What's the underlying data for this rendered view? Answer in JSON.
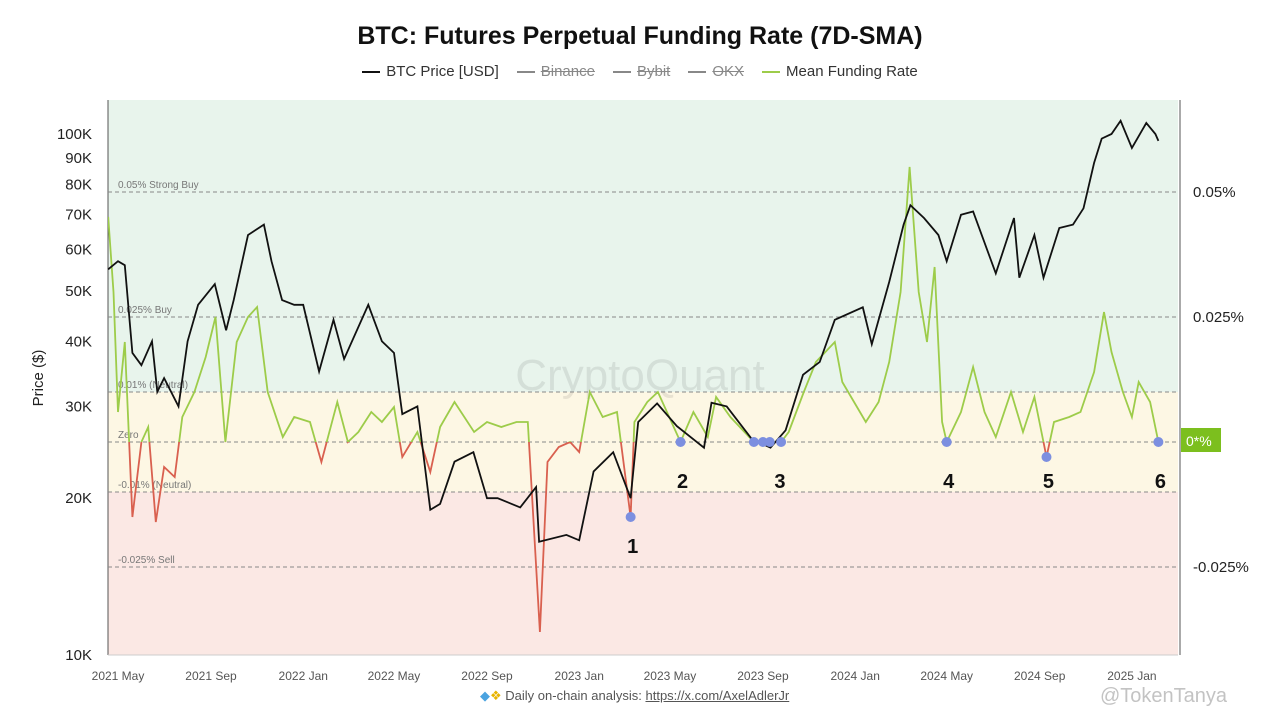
{
  "chart_data": {
    "type": "line",
    "title": "BTC: Futures Perpetual Funding Rate (7D-SMA)",
    "ylabel": "Price ($)",
    "legend": [
      {
        "name": "BTC Price [USD]",
        "color": "#111111",
        "hidden": false
      },
      {
        "name": "Binance",
        "color": "#888888",
        "hidden": true
      },
      {
        "name": "Bybit",
        "color": "#888888",
        "hidden": true
      },
      {
        "name": "OKX",
        "color": "#888888",
        "hidden": true
      },
      {
        "name": "Mean Funding Rate",
        "color": "#9dcc4a",
        "hidden": false
      }
    ],
    "legend_placement": "top-center",
    "x_ticks": [
      "2021 May",
      "2021 Sep",
      "2022 Jan",
      "2022 May",
      "2022 Sep",
      "2023 Jan",
      "2023 May",
      "2023 Sep",
      "2024 Jan",
      "2024 May",
      "2024 Sep",
      "2025 Jan"
    ],
    "y_left": {
      "scale": "log",
      "range": [
        10000,
        115000
      ],
      "ticks": [
        "10K",
        "20K",
        "30K",
        "40K",
        "50K",
        "60K",
        "70K",
        "80K",
        "90K",
        "100K"
      ],
      "tick_values": [
        10000,
        20000,
        30000,
        40000,
        50000,
        60000,
        70000,
        80000,
        90000,
        100000
      ]
    },
    "y_right": {
      "range_percent": [
        -0.045,
        0.068
      ],
      "ticks": [
        "0.05%",
        "0.025%",
        "-0.025%"
      ],
      "tick_values": [
        0.05,
        0.025,
        -0.025
      ],
      "current_label": "0*%"
    },
    "bands": [
      {
        "label": "0.05% Strong Buy",
        "value": 0.05
      },
      {
        "label": "0.025% Buy",
        "value": 0.025
      },
      {
        "label": "0.01% (Neutral)",
        "value": 0.01
      },
      {
        "label": "Zero",
        "value": 0
      },
      {
        "label": "-0.01% (Neutral)",
        "value": -0.01
      },
      {
        "label": "-0.025% Sell",
        "value": -0.025
      }
    ],
    "band_colors": {
      "buy": "#e8f4ec",
      "neutral": "#fdf7e4",
      "sell": "#fbe8e4"
    },
    "negative_color": "#d9604f",
    "marker_color": "#7c8fe0",
    "series": [
      {
        "name": "BTC Price [USD]",
        "points": [
          [
            "2021-04-18",
            55000
          ],
          [
            "2021-05-01",
            57000
          ],
          [
            "2021-05-10",
            56000
          ],
          [
            "2021-05-20",
            38000
          ],
          [
            "2021-06-01",
            36000
          ],
          [
            "2021-06-15",
            40000
          ],
          [
            "2021-06-22",
            32000
          ],
          [
            "2021-07-01",
            34000
          ],
          [
            "2021-07-20",
            30000
          ],
          [
            "2021-08-01",
            40000
          ],
          [
            "2021-08-15",
            47000
          ],
          [
            "2021-09-06",
            51500
          ],
          [
            "2021-09-21",
            42000
          ],
          [
            "2021-10-01",
            48000
          ],
          [
            "2021-10-20",
            64000
          ],
          [
            "2021-11-10",
            67000
          ],
          [
            "2021-11-20",
            57000
          ],
          [
            "2021-12-04",
            48000
          ],
          [
            "2021-12-20",
            47000
          ],
          [
            "2022-01-01",
            47000
          ],
          [
            "2022-01-22",
            35000
          ],
          [
            "2022-02-10",
            44000
          ],
          [
            "2022-02-24",
            37000
          ],
          [
            "2022-03-28",
            47000
          ],
          [
            "2022-04-15",
            40000
          ],
          [
            "2022-05-01",
            38000
          ],
          [
            "2022-05-12",
            29000
          ],
          [
            "2022-06-01",
            30000
          ],
          [
            "2022-06-18",
            19000
          ],
          [
            "2022-07-01",
            19500
          ],
          [
            "2022-07-20",
            23500
          ],
          [
            "2022-08-14",
            24500
          ],
          [
            "2022-09-01",
            20000
          ],
          [
            "2022-09-15",
            20000
          ],
          [
            "2022-10-15",
            19200
          ],
          [
            "2022-11-05",
            21000
          ],
          [
            "2022-11-09",
            16500
          ],
          [
            "2022-12-15",
            17000
          ],
          [
            "2023-01-01",
            16600
          ],
          [
            "2023-01-20",
            22500
          ],
          [
            "2023-02-15",
            24500
          ],
          [
            "2023-03-10",
            20000
          ],
          [
            "2023-03-20",
            28000
          ],
          [
            "2023-04-14",
            30400
          ],
          [
            "2023-05-10",
            27500
          ],
          [
            "2023-06-15",
            25000
          ],
          [
            "2023-06-25",
            30500
          ],
          [
            "2023-07-15",
            30000
          ],
          [
            "2023-08-17",
            26000
          ],
          [
            "2023-09-11",
            25000
          ],
          [
            "2023-10-01",
            27000
          ],
          [
            "2023-10-24",
            34500
          ],
          [
            "2023-11-15",
            36500
          ],
          [
            "2023-12-05",
            44000
          ],
          [
            "2024-01-11",
            46500
          ],
          [
            "2024-01-23",
            39500
          ],
          [
            "2024-02-15",
            52000
          ],
          [
            "2024-03-05",
            67000
          ],
          [
            "2024-03-14",
            73000
          ],
          [
            "2024-04-01",
            69000
          ],
          [
            "2024-04-20",
            64000
          ],
          [
            "2024-05-01",
            57000
          ],
          [
            "2024-05-20",
            70000
          ],
          [
            "2024-06-05",
            71000
          ],
          [
            "2024-07-05",
            54000
          ],
          [
            "2024-07-29",
            69000
          ],
          [
            "2024-08-05",
            53000
          ],
          [
            "2024-08-25",
            64000
          ],
          [
            "2024-09-06",
            53000
          ],
          [
            "2024-09-27",
            66000
          ],
          [
            "2024-10-15",
            67000
          ],
          [
            "2024-10-29",
            72000
          ],
          [
            "2024-11-12",
            88000
          ],
          [
            "2024-11-22",
            98000
          ],
          [
            "2024-12-05",
            100000
          ],
          [
            "2024-12-17",
            106000
          ],
          [
            "2025-01-01",
            94000
          ],
          [
            "2025-01-20",
            105000
          ],
          [
            "2025-02-01",
            100000
          ],
          [
            "2025-02-05",
            97000
          ]
        ]
      },
      {
        "name": "Mean Funding Rate",
        "unit": "%",
        "points": [
          [
            "2021-04-18",
            0.045
          ],
          [
            "2021-04-25",
            0.03
          ],
          [
            "2021-05-01",
            0.006
          ],
          [
            "2021-05-10",
            0.02
          ],
          [
            "2021-05-20",
            -0.015
          ],
          [
            "2021-06-01",
            0.0
          ],
          [
            "2021-06-10",
            0.003
          ],
          [
            "2021-06-20",
            -0.016
          ],
          [
            "2021-07-01",
            -0.005
          ],
          [
            "2021-07-15",
            -0.007
          ],
          [
            "2021-07-25",
            0.005
          ],
          [
            "2021-08-10",
            0.01
          ],
          [
            "2021-08-25",
            0.017
          ],
          [
            "2021-09-07",
            0.025
          ],
          [
            "2021-09-20",
            0.0
          ],
          [
            "2021-10-05",
            0.02
          ],
          [
            "2021-10-20",
            0.025
          ],
          [
            "2021-11-01",
            0.027
          ],
          [
            "2021-11-15",
            0.01
          ],
          [
            "2021-12-05",
            0.001
          ],
          [
            "2021-12-20",
            0.005
          ],
          [
            "2022-01-10",
            0.004
          ],
          [
            "2022-01-25",
            -0.004
          ],
          [
            "2022-02-15",
            0.008
          ],
          [
            "2022-03-01",
            0.0
          ],
          [
            "2022-03-15",
            0.002
          ],
          [
            "2022-04-01",
            0.006
          ],
          [
            "2022-04-15",
            0.004
          ],
          [
            "2022-05-01",
            0.007
          ],
          [
            "2022-05-12",
            -0.003
          ],
          [
            "2022-06-01",
            0.002
          ],
          [
            "2022-06-18",
            -0.006
          ],
          [
            "2022-07-01",
            0.003
          ],
          [
            "2022-07-20",
            0.008
          ],
          [
            "2022-08-15",
            0.002
          ],
          [
            "2022-09-01",
            0.004
          ],
          [
            "2022-09-20",
            0.003
          ],
          [
            "2022-10-10",
            0.004
          ],
          [
            "2022-10-25",
            0.004
          ],
          [
            "2022-11-10",
            -0.038
          ],
          [
            "2022-11-20",
            -0.004
          ],
          [
            "2022-12-05",
            -0.001
          ],
          [
            "2022-12-20",
            0.0
          ],
          [
            "2023-01-01",
            -0.002
          ],
          [
            "2023-01-15",
            0.01
          ],
          [
            "2023-02-01",
            0.005
          ],
          [
            "2023-02-20",
            0.006
          ],
          [
            "2023-03-10",
            -0.015
          ],
          [
            "2023-03-15",
            0.004
          ],
          [
            "2023-04-01",
            0.008
          ],
          [
            "2023-04-15",
            0.01
          ],
          [
            "2023-05-15",
            0.0
          ],
          [
            "2023-06-01",
            0.006
          ],
          [
            "2023-06-20",
            0.001
          ],
          [
            "2023-07-01",
            0.009
          ],
          [
            "2023-07-20",
            0.005
          ],
          [
            "2023-08-20",
            0.0
          ],
          [
            "2023-09-01",
            0.0
          ],
          [
            "2023-09-10",
            0.0
          ],
          [
            "2023-09-25",
            0.0
          ],
          [
            "2023-10-05",
            0.002
          ],
          [
            "2023-10-25",
            0.01
          ],
          [
            "2023-11-10",
            0.016
          ],
          [
            "2023-12-05",
            0.02
          ],
          [
            "2023-12-15",
            0.012
          ],
          [
            "2024-01-15",
            0.004
          ],
          [
            "2024-02-01",
            0.008
          ],
          [
            "2024-02-15",
            0.016
          ],
          [
            "2024-03-01",
            0.03
          ],
          [
            "2024-03-13",
            0.055
          ],
          [
            "2024-03-25",
            0.03
          ],
          [
            "2024-04-05",
            0.02
          ],
          [
            "2024-04-15",
            0.035
          ],
          [
            "2024-04-25",
            0.004
          ],
          [
            "2024-05-01",
            0.0
          ],
          [
            "2024-05-20",
            0.006
          ],
          [
            "2024-06-05",
            0.015
          ],
          [
            "2024-06-20",
            0.006
          ],
          [
            "2024-07-05",
            0.001
          ],
          [
            "2024-07-25",
            0.01
          ],
          [
            "2024-08-10",
            0.002
          ],
          [
            "2024-08-25",
            0.009
          ],
          [
            "2024-09-10",
            -0.003
          ],
          [
            "2024-09-20",
            0.004
          ],
          [
            "2024-10-10",
            0.005
          ],
          [
            "2024-10-25",
            0.006
          ],
          [
            "2024-11-12",
            0.014
          ],
          [
            "2024-11-25",
            0.026
          ],
          [
            "2024-12-05",
            0.018
          ],
          [
            "2024-12-20",
            0.01
          ],
          [
            "2025-01-01",
            0.005
          ],
          [
            "2025-01-10",
            0.012
          ],
          [
            "2025-01-25",
            0.008
          ],
          [
            "2025-02-05",
            0.0
          ]
        ]
      }
    ],
    "annotations": [
      {
        "label": "1",
        "points": [
          [
            "2023-03-10",
            -0.015
          ]
        ]
      },
      {
        "label": "2",
        "points": [
          [
            "2023-05-15",
            0.0
          ]
        ]
      },
      {
        "label": "3",
        "points": [
          [
            "2023-08-20",
            0.0
          ],
          [
            "2023-09-01",
            0.0
          ],
          [
            "2023-09-10",
            0.0
          ],
          [
            "2023-09-25",
            0.0
          ]
        ]
      },
      {
        "label": "4",
        "points": [
          [
            "2024-05-01",
            0.0
          ]
        ]
      },
      {
        "label": "5",
        "points": [
          [
            "2024-09-10",
            -0.003
          ]
        ]
      },
      {
        "label": "6",
        "points": [
          [
            "2025-02-05",
            0.0
          ]
        ]
      }
    ]
  },
  "watermark": "CryptoQuant",
  "footer": {
    "text": "Daily on-chain analysis:",
    "link": "https://x.com/AxelAdlerJr",
    "icons": [
      "diamond-icon",
      "raised-hands-icon"
    ]
  },
  "credit_watermark": "@TokenTanya"
}
